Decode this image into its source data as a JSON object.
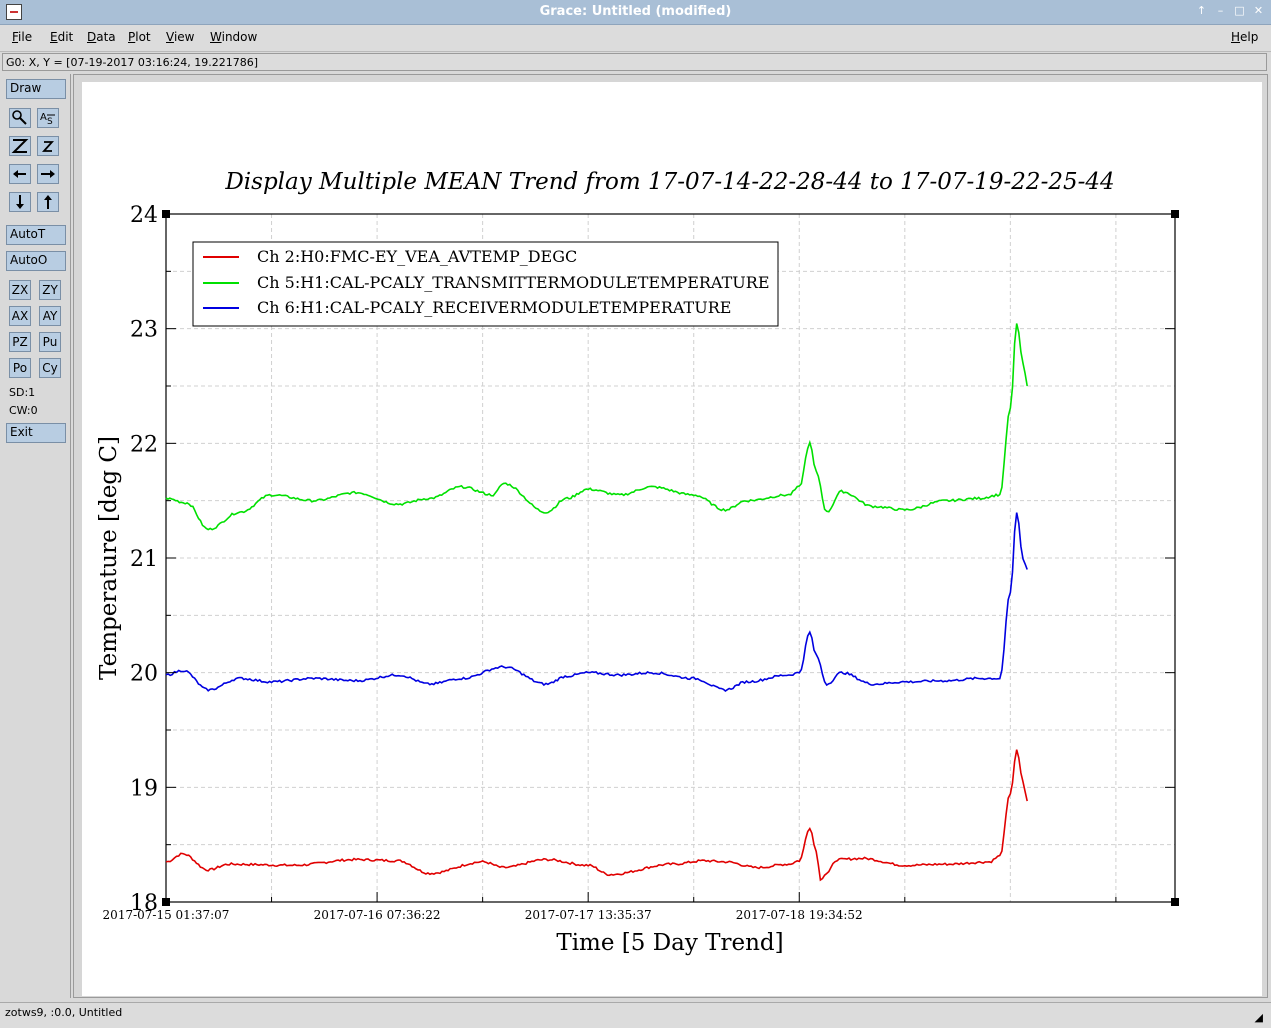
{
  "window": {
    "title": "Grace: Untitled (modified)",
    "controls": [
      "↑",
      "–",
      "□",
      "✕"
    ]
  },
  "menubar": {
    "items": [
      {
        "underline": "F",
        "rest": "ile"
      },
      {
        "underline": "E",
        "rest": "dit"
      },
      {
        "underline": "D",
        "rest": "ata"
      },
      {
        "underline": "P",
        "rest": "lot"
      },
      {
        "underline": "V",
        "rest": "iew"
      },
      {
        "underline": "W",
        "rest": "indow"
      }
    ],
    "help": {
      "underline": "H",
      "rest": "elp"
    }
  },
  "locator": "G0: X, Y = [07-19-2017 03:16:24, 19.221786]",
  "toolbar": {
    "draw": "Draw",
    "autot": "AutoT",
    "autoo": "AutoO",
    "zx": "ZX",
    "zy": "ZY",
    "ax": "AX",
    "ay": "AY",
    "pz": "PZ",
    "pu": "Pu",
    "po": "Po",
    "cy": "Cy",
    "sd": "SD:1",
    "cw": "CW:0",
    "exit": "Exit",
    "icons": [
      "magnifier-icon",
      "text-tool-icon",
      "zoom-in-icon",
      "zoom-out-icon",
      "arrow-left-icon",
      "arrow-right-icon",
      "arrow-down-icon",
      "arrow-up-icon"
    ]
  },
  "status": "zotws9, :0.0, Untitled",
  "chart_data": {
    "type": "line",
    "title": "Display Multiple MEAN Trend from 17-07-14-22-28-44 to 17-07-19-22-25-44",
    "xlabel": "Time [5 Day Trend]",
    "ylabel": "Temperature [deg C]",
    "ylim": [
      18,
      24
    ],
    "yticks": [
      "18",
      "19",
      "20",
      "21",
      "22",
      "23",
      "24"
    ],
    "xlim": [
      0,
      4.78
    ],
    "xticks": [
      {
        "x": 0,
        "label": "2017-07-15 01:37:07"
      },
      {
        "x": 1,
        "label": "2017-07-16 07:36:22"
      },
      {
        "x": 2,
        "label": "2017-07-17 13:35:37"
      },
      {
        "x": 3,
        "label": "2017-07-18 19:34:52"
      }
    ],
    "grid": true,
    "legend_position": "top-left",
    "series": [
      {
        "name": "Ch 2:H0:FMC-EY_VEA_AVTEMP_DEGC",
        "color": "#e00000",
        "x": [
          0,
          0.08,
          0.2,
          0.3,
          0.6,
          0.9,
          1.1,
          1.25,
          1.5,
          1.6,
          1.8,
          2.0,
          2.1,
          2.4,
          2.55,
          2.65,
          2.8,
          2.95,
          3.0,
          3.05,
          3.08,
          3.1,
          3.13,
          3.18,
          3.3,
          3.5,
          3.7,
          3.9,
          3.95,
          4.0,
          4.03,
          4.06,
          4.08
        ],
        "y": [
          18.35,
          18.42,
          18.28,
          18.33,
          18.32,
          18.37,
          18.36,
          18.25,
          18.35,
          18.3,
          18.37,
          18.32,
          18.24,
          18.33,
          18.36,
          18.35,
          18.3,
          18.33,
          18.36,
          18.65,
          18.45,
          18.2,
          18.25,
          18.37,
          18.38,
          18.32,
          18.33,
          18.35,
          18.4,
          18.95,
          19.32,
          19.05,
          18.88
        ]
      },
      {
        "name": "Ch 5:H1:CAL-PCALY_TRANSMITTERMODULETEMPERATURE",
        "color": "#00e000",
        "x": [
          0,
          0.1,
          0.2,
          0.35,
          0.5,
          0.7,
          0.9,
          1.1,
          1.25,
          1.4,
          1.55,
          1.6,
          1.8,
          1.9,
          2.0,
          2.15,
          2.3,
          2.5,
          2.65,
          2.75,
          2.95,
          3.0,
          3.05,
          3.08,
          3.13,
          3.2,
          3.35,
          3.5,
          3.7,
          3.85,
          3.95,
          4.0,
          4.03,
          4.06,
          4.08
        ],
        "y": [
          21.52,
          21.48,
          21.25,
          21.4,
          21.55,
          21.5,
          21.57,
          21.47,
          21.52,
          21.62,
          21.55,
          21.65,
          21.4,
          21.52,
          21.6,
          21.55,
          21.62,
          21.55,
          21.42,
          21.5,
          21.55,
          21.62,
          22.0,
          21.75,
          21.4,
          21.58,
          21.45,
          21.42,
          21.5,
          21.52,
          21.55,
          22.3,
          23.05,
          22.7,
          22.5
        ]
      },
      {
        "name": "Ch 6:H1:CAL-PCALY_RECEIVERMODULETEMPERATURE",
        "color": "#0000e0",
        "x": [
          0,
          0.08,
          0.2,
          0.35,
          0.5,
          0.7,
          0.9,
          1.1,
          1.25,
          1.4,
          1.6,
          1.8,
          1.9,
          2.0,
          2.15,
          2.3,
          2.5,
          2.65,
          2.75,
          2.95,
          3.0,
          3.05,
          3.08,
          3.13,
          3.2,
          3.35,
          3.5,
          3.7,
          3.85,
          3.95,
          4.0,
          4.03,
          4.06,
          4.08
        ],
        "y": [
          19.98,
          20.02,
          19.85,
          19.95,
          19.92,
          19.95,
          19.93,
          19.98,
          19.9,
          19.95,
          20.05,
          19.9,
          19.97,
          20.0,
          19.98,
          20.0,
          19.95,
          19.85,
          19.92,
          19.98,
          20.0,
          20.35,
          20.15,
          19.9,
          20.0,
          19.9,
          19.92,
          19.93,
          19.95,
          19.95,
          20.7,
          21.4,
          21.0,
          20.9
        ]
      }
    ]
  }
}
